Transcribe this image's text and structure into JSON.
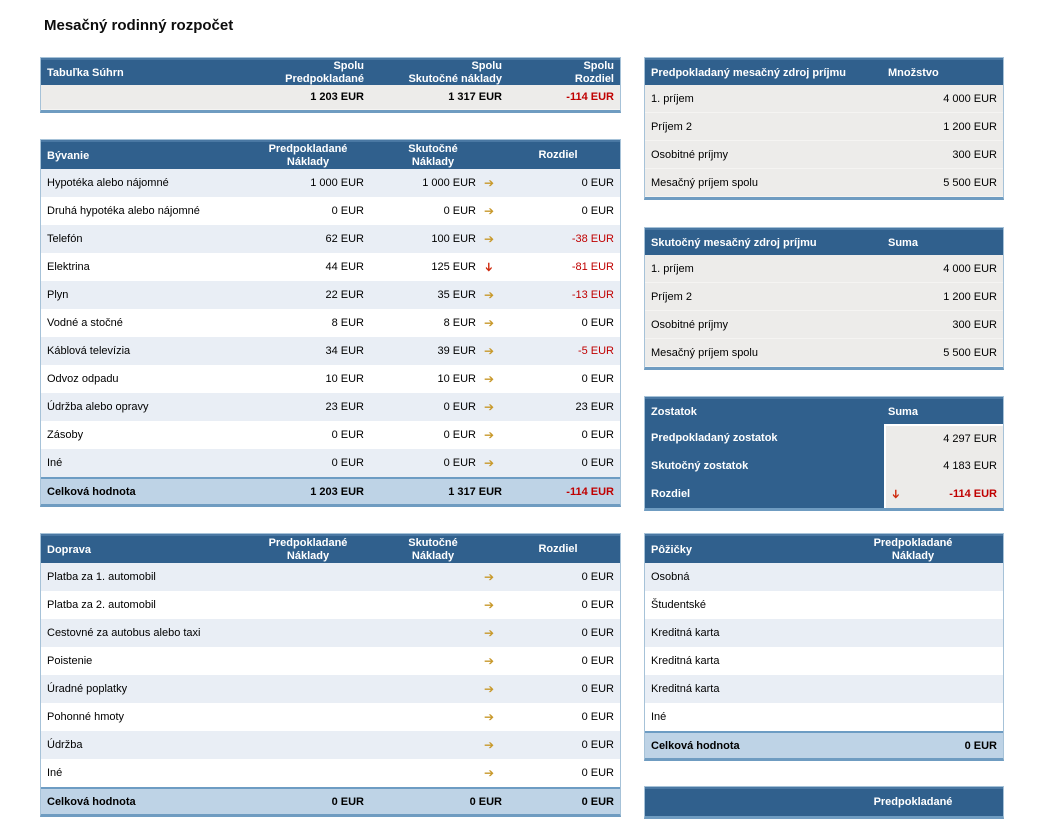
{
  "page": {
    "title": "Mesačný rodinný rozpočet"
  },
  "colors": {
    "header_bg": "#30608d",
    "row_alt": "#e9eef5",
    "row_gray": "#edecea",
    "total_bg": "#bed3e6",
    "negative": "#c00000",
    "arrow_gold": "#c8992b",
    "arrow_red": "#cf2a0e",
    "table_border": "#a6c2d8"
  },
  "summary": {
    "title": "Tabuľka Súhrn",
    "col_expected_l1": "Spolu",
    "col_expected_l2": "Predpokladané",
    "col_actual_l1": "Spolu",
    "col_actual_l2": "Skutočné náklady",
    "col_diff_l1": "Spolu",
    "col_diff_l2": "Rozdiel",
    "total_expected": "1 203 EUR",
    "total_actual": "1 317 EUR",
    "total_diff": "-114 EUR"
  },
  "housing": {
    "title": "Bývanie",
    "col_expected_l1": "Predpokladané",
    "col_expected_l2": "Náklady",
    "col_actual_l1": "Skutočné",
    "col_actual_l2": "Náklady",
    "col_diff": "Rozdiel",
    "rows": [
      {
        "label": "Hypotéka alebo nájomné",
        "expected": "1 000 EUR",
        "actual": "1 000 EUR",
        "arrow": "right",
        "diff": "0 EUR"
      },
      {
        "label": "Druhá hypotéka alebo nájomné",
        "expected": "0 EUR",
        "actual": "0 EUR",
        "arrow": "right",
        "diff": "0 EUR"
      },
      {
        "label": "Telefón",
        "expected": "62 EUR",
        "actual": "100 EUR",
        "arrow": "right",
        "diff": "-38 EUR"
      },
      {
        "label": "Elektrina",
        "expected": "44 EUR",
        "actual": "125 EUR",
        "arrow": "down",
        "diff": "-81 EUR"
      },
      {
        "label": "Plyn",
        "expected": "22 EUR",
        "actual": "35 EUR",
        "arrow": "right",
        "diff": "-13 EUR"
      },
      {
        "label": "Vodné a stočné",
        "expected": "8 EUR",
        "actual": "8 EUR",
        "arrow": "right",
        "diff": "0 EUR"
      },
      {
        "label": "Káblová televízia",
        "expected": "34 EUR",
        "actual": "39 EUR",
        "arrow": "right",
        "diff": "-5 EUR"
      },
      {
        "label": "Odvoz odpadu",
        "expected": "10 EUR",
        "actual": "10 EUR",
        "arrow": "right",
        "diff": "0 EUR"
      },
      {
        "label": "Údržba alebo opravy",
        "expected": "23 EUR",
        "actual": "0 EUR",
        "arrow": "right",
        "diff": "23 EUR"
      },
      {
        "label": "Zásoby",
        "expected": "0 EUR",
        "actual": "0 EUR",
        "arrow": "right",
        "diff": "0 EUR"
      },
      {
        "label": "Iné",
        "expected": "0 EUR",
        "actual": "0 EUR",
        "arrow": "right",
        "diff": "0 EUR"
      }
    ],
    "total": {
      "label": "Celková hodnota",
      "expected": "1 203 EUR",
      "actual": "1 317 EUR",
      "diff": "-114 EUR"
    }
  },
  "transport": {
    "title": "Doprava",
    "col_expected_l1": "Predpokladané",
    "col_expected_l2": "Náklady",
    "col_actual_l1": "Skutočné",
    "col_actual_l2": "Náklady",
    "col_diff": "Rozdiel",
    "rows": [
      {
        "label": "Platba za 1. automobil",
        "expected": "",
        "actual": "",
        "arrow": "right",
        "diff": "0 EUR"
      },
      {
        "label": "Platba za 2. automobil",
        "expected": "",
        "actual": "",
        "arrow": "right",
        "diff": "0 EUR"
      },
      {
        "label": "Cestovné za autobus alebo taxi",
        "expected": "",
        "actual": "",
        "arrow": "right",
        "diff": "0 EUR"
      },
      {
        "label": "Poistenie",
        "expected": "",
        "actual": "",
        "arrow": "right",
        "diff": "0 EUR"
      },
      {
        "label": "Úradné poplatky",
        "expected": "",
        "actual": "",
        "arrow": "right",
        "diff": "0 EUR"
      },
      {
        "label": "Pohonné hmoty",
        "expected": "",
        "actual": "",
        "arrow": "right",
        "diff": "0 EUR"
      },
      {
        "label": "Údržba",
        "expected": "",
        "actual": "",
        "arrow": "right",
        "diff": "0 EUR"
      },
      {
        "label": "Iné",
        "expected": "",
        "actual": "",
        "arrow": "right",
        "diff": "0 EUR"
      }
    ],
    "total": {
      "label": "Celková hodnota",
      "expected": "0 EUR",
      "actual": "0 EUR",
      "diff": "0 EUR"
    }
  },
  "expected_income": {
    "title": "Predpokladaný mesačný zdroj príjmu",
    "col_value": "Množstvo",
    "rows": [
      {
        "label": "1. príjem",
        "value": "4 000 EUR"
      },
      {
        "label": "Príjem 2",
        "value": "1 200 EUR"
      },
      {
        "label": "Osobitné príjmy",
        "value": "300 EUR"
      },
      {
        "label": "Mesačný príjem spolu",
        "value": "5 500 EUR"
      }
    ]
  },
  "actual_income": {
    "title": "Skutočný mesačný zdroj príjmu",
    "col_value": "Suma",
    "rows": [
      {
        "label": "1. príjem",
        "value": "4 000 EUR"
      },
      {
        "label": "Príjem 2",
        "value": "1 200 EUR"
      },
      {
        "label": "Osobitné príjmy",
        "value": "300 EUR"
      },
      {
        "label": "Mesačný príjem spolu",
        "value": "5 500 EUR"
      }
    ]
  },
  "balance": {
    "title": "Zostatok",
    "col_value": "Suma",
    "rows": [
      {
        "label": "Predpokladaný zostatok",
        "value": "4 297 EUR",
        "arrow": ""
      },
      {
        "label": "Skutočný zostatok",
        "value": "4 183 EUR",
        "arrow": ""
      },
      {
        "label": "Rozdiel",
        "value": "-114 EUR",
        "arrow": "down"
      }
    ]
  },
  "loans": {
    "title": "Pôžičky",
    "col_value_l1": "Predpokladané",
    "col_value_l2": "Náklady",
    "rows": [
      {
        "label": "Osobná"
      },
      {
        "label": "Študentské"
      },
      {
        "label": "Kreditná karta"
      },
      {
        "label": "Kreditná karta"
      },
      {
        "label": "Kreditná karta"
      },
      {
        "label": "Iné"
      }
    ],
    "total": {
      "label": "Celková hodnota",
      "value": "0 EUR"
    }
  },
  "next_table": {
    "col_value_l1": "Predpokladané"
  }
}
